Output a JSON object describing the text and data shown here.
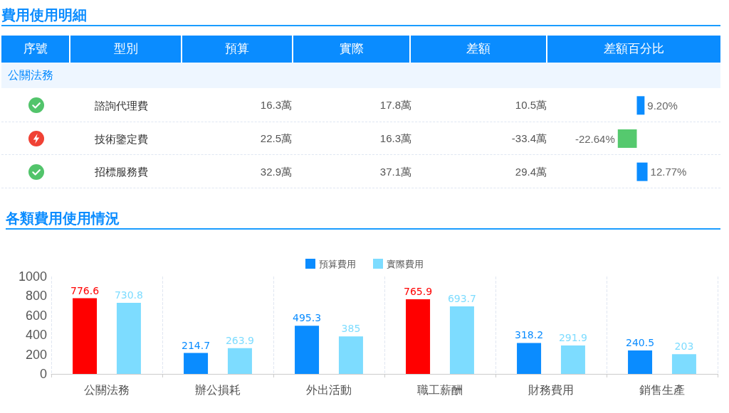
{
  "chart_data": [
    {
      "type": "bar",
      "orientation": "horizontal",
      "title": "費用使用明細",
      "categories": [
        "諮詢代理費",
        "技術鑒定費",
        "招標服務費"
      ],
      "values": [
        9.2,
        -22.64,
        12.77
      ],
      "colors": [
        "#0a8cff",
        "#55c96e",
        "#0a8cff"
      ],
      "value_labels": [
        "9.20%",
        "-22.64%",
        "12.77%"
      ],
      "tick_labels": "y",
      "annotations": [
        "序號",
        "型別",
        "預算",
        "實際",
        "差額",
        "差額百分比",
        "公關法務",
        "16.3萬",
        "17.8萬",
        "10.5萬",
        "22.5萬",
        "16.3萬",
        "-33.4萬",
        "32.9萬",
        "37.1萬",
        "29.4萬"
      ]
    },
    {
      "type": "bar",
      "title": "各類費用使用情況",
      "categories": [
        "公關法務",
        "辦公損耗",
        "外出活動",
        "職工薪酬",
        "財務費用",
        "銷售生產"
      ],
      "series": [
        {
          "name": "預算費用",
          "color": "#0a8cff",
          "colors": [
            "#ff0000",
            "#0a8cff",
            "#0a8cff",
            "#ff0000",
            "#0a8cff",
            "#0a8cff"
          ],
          "values": [
            776.6,
            214.7,
            495.3,
            765.9,
            318.2,
            240.5
          ]
        },
        {
          "name": "實際費用",
          "color": "#7ddcff",
          "values": [
            730.8,
            263.9,
            385,
            693.7,
            291.9,
            203
          ]
        }
      ],
      "ylim": [
        0,
        1000
      ],
      "yticks": [
        0,
        200,
        400,
        600,
        800,
        1000
      ],
      "grid": "x",
      "legend": "top",
      "data_labels": true
    }
  ]
}
